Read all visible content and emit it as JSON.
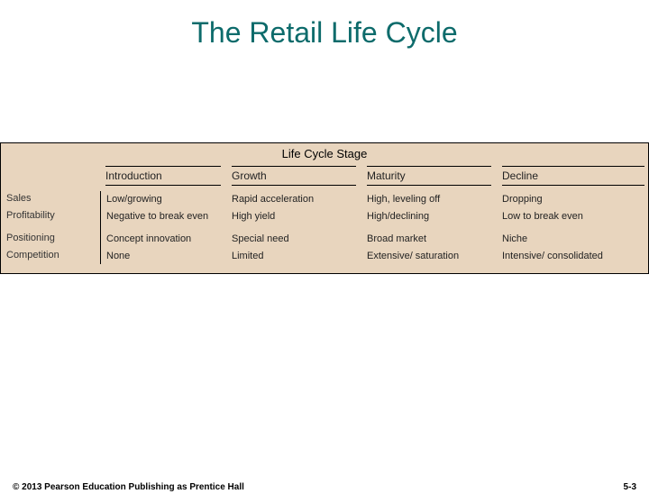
{
  "title": "The Retail Life Cycle",
  "table": {
    "heading": "Life Cycle Stage",
    "background_color": "#e8d5be",
    "border_color": "#000000",
    "columns": [
      "Introduction",
      "Growth",
      "Maturity",
      "Decline"
    ],
    "row_labels": [
      "Sales",
      "Profitability",
      "Positioning",
      "Competition"
    ],
    "cells": {
      "sales": {
        "introduction": "Low/growing",
        "growth": "Rapid acceleration",
        "maturity": "High, leveling off",
        "decline": "Dropping"
      },
      "profitability": {
        "introduction": "Negative to break even",
        "growth": "High yield",
        "maturity": "High/declining",
        "decline": "Low to break even"
      },
      "positioning": {
        "introduction": "Concept innovation",
        "growth": "Special need",
        "maturity": "Broad market",
        "decline": "Niche"
      },
      "competition": {
        "introduction": "None",
        "growth": "Limited",
        "maturity": "Extensive/ saturation",
        "decline": "Intensive/ consolidated"
      }
    }
  },
  "footer": {
    "copyright": "© 2013 Pearson Education Publishing as Prentice Hall",
    "page": "5-3"
  }
}
